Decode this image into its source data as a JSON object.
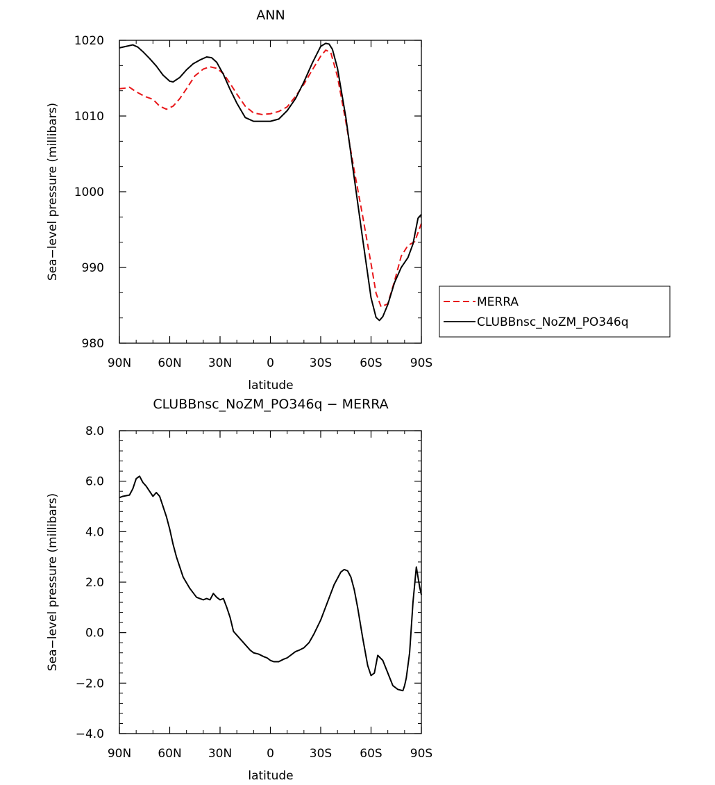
{
  "chart_data": [
    {
      "type": "line",
      "title": "ANN",
      "xlabel": "latitude",
      "ylabel": "Sea−level pressure (millibars)",
      "x_ticks": [
        90,
        60,
        30,
        0,
        -30,
        -60,
        -90
      ],
      "x_tick_labels": [
        "90N",
        "60N",
        "30N",
        "0",
        "30S",
        "60S",
        "90S"
      ],
      "xlim": [
        90,
        -90
      ],
      "ylim": [
        980,
        1020
      ],
      "y_ticks": [
        980,
        990,
        1000,
        1010,
        1020
      ],
      "y_tick_labels": [
        "980",
        "990",
        "1000",
        "1010",
        "1020"
      ],
      "legend_position": "outside-right",
      "series": [
        {
          "name": "MERRA",
          "color": "#e8171a",
          "dash": "dashed",
          "x": [
            90,
            86,
            84,
            80,
            75,
            70,
            66,
            62,
            58,
            54,
            50,
            45,
            40,
            36,
            32,
            28,
            24,
            20,
            15,
            10,
            5,
            0,
            -5,
            -10,
            -15,
            -20,
            -25,
            -30,
            -33,
            -36,
            -40,
            -45,
            -50,
            -55,
            -60,
            -63,
            -66,
            -70,
            -74,
            -78,
            -82,
            -86,
            -90
          ],
          "y": [
            1013.6,
            1013.7,
            1013.8,
            1013.2,
            1012.6,
            1012.2,
            1011.3,
            1010.9,
            1011.3,
            1012.3,
            1013.6,
            1015.3,
            1016.2,
            1016.5,
            1016.3,
            1015.6,
            1014.3,
            1012.9,
            1011.3,
            1010.4,
            1010.2,
            1010.3,
            1010.6,
            1011.2,
            1012.6,
            1014.2,
            1016.1,
            1017.9,
            1018.7,
            1018.4,
            1015.2,
            1009.2,
            1002.8,
            996.8,
            990.5,
            986.6,
            984.8,
            985.2,
            988.2,
            991.5,
            992.9,
            993.4,
            995.8
          ]
        },
        {
          "name": "CLUBBnsc_NoZM_PO346q",
          "color": "#000000",
          "dash": "solid",
          "x": [
            90,
            86,
            82,
            79,
            76,
            72,
            68,
            64,
            60,
            58,
            54,
            50,
            46,
            42,
            38,
            35,
            32,
            28,
            24,
            20,
            15,
            10,
            5,
            0,
            -5,
            -10,
            -15,
            -20,
            -25,
            -30,
            -33,
            -35,
            -37,
            -40,
            -45,
            -50,
            -55,
            -60,
            -63,
            -65,
            -67,
            -70,
            -74,
            -78,
            -82,
            -85,
            -88,
            -90
          ],
          "y": [
            1019,
            1019.2,
            1019.4,
            1019.1,
            1018.5,
            1017.6,
            1016.6,
            1015.4,
            1014.6,
            1014.5,
            1015.1,
            1016.1,
            1016.9,
            1017.4,
            1017.8,
            1017.7,
            1017.1,
            1015.5,
            1013.5,
            1011.7,
            1009.8,
            1009.3,
            1009.3,
            1009.3,
            1009.6,
            1010.7,
            1012.3,
            1014.5,
            1017.0,
            1019.2,
            1019.6,
            1019.5,
            1018.8,
            1016.3,
            1009.8,
            1001.8,
            993.8,
            986.0,
            983.4,
            983.0,
            983.5,
            985.1,
            988.0,
            990.0,
            991.3,
            993.1,
            996.5,
            997.0
          ]
        }
      ]
    },
    {
      "type": "line",
      "title": "CLUBBnsc_NoZM_PO346q − MERRA",
      "xlabel": "latitude",
      "ylabel": "Sea−level pressure (millibars)",
      "x_ticks": [
        90,
        60,
        30,
        0,
        -30,
        -60,
        -90
      ],
      "x_tick_labels": [
        "90N",
        "60N",
        "30N",
        "0",
        "30S",
        "60S",
        "90S"
      ],
      "xlim": [
        90,
        -90
      ],
      "ylim": [
        -4,
        8
      ],
      "y_ticks": [
        -4,
        -2,
        0,
        2,
        4,
        6,
        8
      ],
      "y_tick_labels": [
        "−4.0",
        "−2.0",
        "0.0",
        "2.0",
        "4.0",
        "6.0",
        "8.0"
      ],
      "series": [
        {
          "color": "#000000",
          "x": [
            90,
            88,
            84,
            82,
            80,
            78,
            76,
            74,
            72,
            70,
            68,
            66,
            64,
            62,
            60,
            58,
            56,
            52,
            48,
            44,
            40,
            38,
            36,
            34,
            32,
            30,
            28,
            26,
            24,
            22,
            20,
            16,
            12,
            10,
            7,
            4,
            2,
            0,
            -2,
            -5,
            -8,
            -10,
            -13,
            -15,
            -17,
            -20,
            -23,
            -26,
            -30,
            -34,
            -38,
            -42,
            -44,
            -46,
            -48,
            -50,
            -52,
            -55,
            -58,
            -60,
            -62,
            -64,
            -67,
            -70,
            -73,
            -76,
            -79,
            -80,
            -81,
            -83,
            -85,
            -87,
            -89,
            -90
          ],
          "y": [
            5.35,
            5.4,
            5.45,
            5.7,
            6.1,
            6.2,
            5.95,
            5.8,
            5.6,
            5.4,
            5.55,
            5.4,
            5.0,
            4.6,
            4.1,
            3.5,
            3.0,
            2.2,
            1.75,
            1.4,
            1.3,
            1.35,
            1.3,
            1.55,
            1.4,
            1.3,
            1.35,
            1.0,
            0.6,
            0.05,
            -0.1,
            -0.4,
            -0.7,
            -0.8,
            -0.85,
            -0.95,
            -1.0,
            -1.1,
            -1.15,
            -1.15,
            -1.05,
            -1.0,
            -0.85,
            -0.75,
            -0.7,
            -0.6,
            -0.4,
            -0.05,
            0.5,
            1.2,
            1.9,
            2.4,
            2.5,
            2.45,
            2.2,
            1.7,
            1.0,
            -0.2,
            -1.3,
            -1.7,
            -1.6,
            -0.9,
            -1.1,
            -1.6,
            -2.1,
            -2.25,
            -2.3,
            -2.1,
            -1.8,
            -0.8,
            1.2,
            2.6,
            1.8,
            1.5
          ]
        }
      ]
    }
  ]
}
